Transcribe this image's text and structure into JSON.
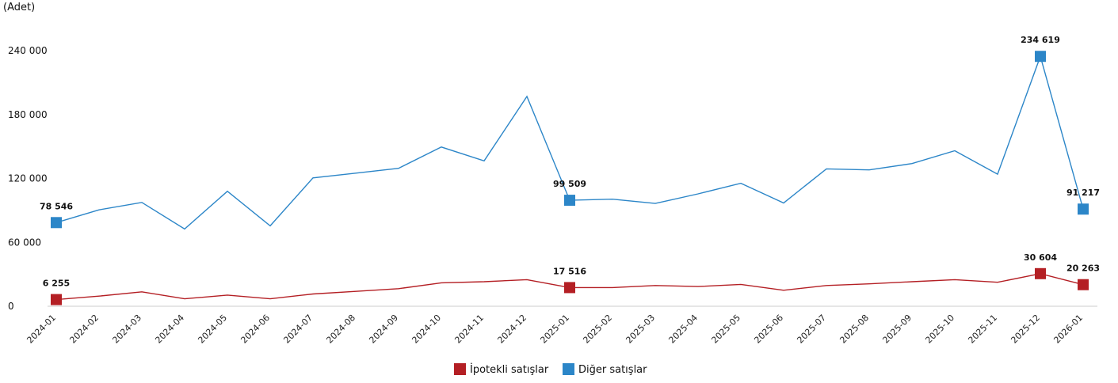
{
  "chart_data": {
    "type": "line",
    "unit_label": "(Adet)",
    "grid": false,
    "legend_position": "bottom-center",
    "ylim": [
      0,
      240000
    ],
    "y_ticks": [
      0,
      60000,
      120000,
      180000,
      240000
    ],
    "y_tick_labels": [
      "0",
      "60 000",
      "120 000",
      "180 000",
      "240 000"
    ],
    "x": [
      "2024-01",
      "2024-02",
      "2024-03",
      "2024-04",
      "2024-05",
      "2024-06",
      "2024-07",
      "2024-08",
      "2024-09",
      "2024-10",
      "2024-11",
      "2024-12",
      "2025-01",
      "2025-02",
      "2025-03",
      "2025-04",
      "2025-05",
      "2025-06",
      "2025-07",
      "2025-08",
      "2025-09",
      "2025-10",
      "2025-11",
      "2025-12",
      "2026-01"
    ],
    "series": [
      {
        "name": "İpotekli satışlar",
        "color": "#b41f24",
        "values": [
          6255,
          9500,
          13500,
          7000,
          10500,
          7000,
          11500,
          14000,
          16500,
          22000,
          23000,
          25000,
          17516,
          17500,
          19500,
          18500,
          20500,
          15000,
          19500,
          21000,
          23000,
          25000,
          22500,
          30604,
          20263
        ],
        "labels": [
          {
            "index": 0,
            "text": "6 255"
          },
          {
            "index": 12,
            "text": "17 516"
          },
          {
            "index": 23,
            "text": "30 604"
          },
          {
            "index": 24,
            "text": "20 263"
          }
        ]
      },
      {
        "name": "Diğer satışlar",
        "color": "#2c86c8",
        "values": [
          78546,
          90500,
          97500,
          72500,
          108000,
          75500,
          120500,
          125000,
          129500,
          149500,
          136500,
          197000,
          99509,
          100500,
          96500,
          105500,
          115500,
          97000,
          129000,
          128000,
          134000,
          146000,
          124000,
          234619,
          91217
        ],
        "labels": [
          {
            "index": 0,
            "text": "78 546"
          },
          {
            "index": 12,
            "text": "99 509"
          },
          {
            "index": 23,
            "text": "234 619"
          },
          {
            "index": 24,
            "text": "91 217"
          }
        ]
      }
    ]
  }
}
